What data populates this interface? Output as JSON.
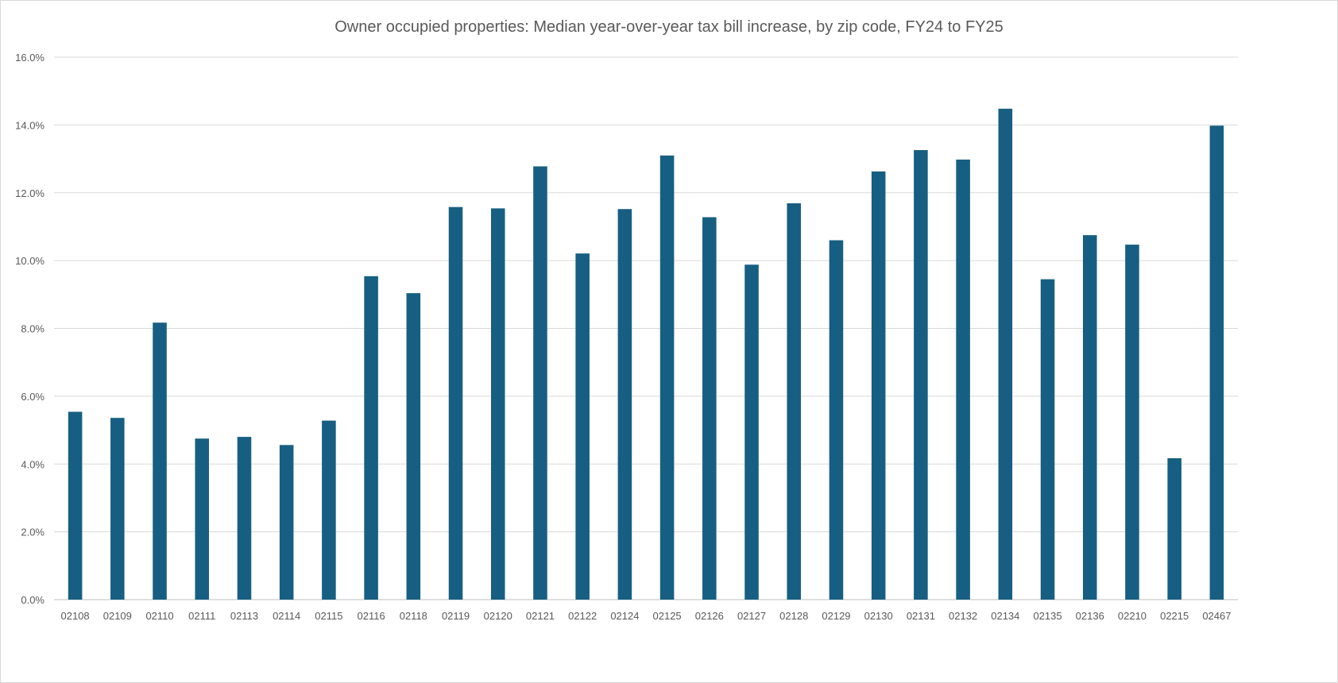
{
  "chart_data": {
    "type": "bar",
    "title": "Owner occupied properties: Median  year-over-year tax bill increase, by zip code, FY24 to FY25",
    "xlabel": "",
    "ylabel": "",
    "ylim": [
      0,
      16
    ],
    "yticks": [
      "0.0%",
      "2.0%",
      "4.0%",
      "6.0%",
      "8.0%",
      "10.0%",
      "12.0%",
      "14.0%",
      "16.0%"
    ],
    "grid": true,
    "legend": "none",
    "bar_color": "#175F82",
    "categories": [
      "02108",
      "02109",
      "02110",
      "02111",
      "02113",
      "02114",
      "02115",
      "02116",
      "02118",
      "02119",
      "02120",
      "02121",
      "02122",
      "02124",
      "02125",
      "02126",
      "02127",
      "02128",
      "02129",
      "02130",
      "02131",
      "02132",
      "02134",
      "02135",
      "02136",
      "02210",
      "02215",
      "02467"
    ],
    "values": [
      5.54,
      5.36,
      8.17,
      4.75,
      4.8,
      4.56,
      5.28,
      9.54,
      9.04,
      11.58,
      11.54,
      12.78,
      10.21,
      11.52,
      13.1,
      11.28,
      9.88,
      11.69,
      10.6,
      12.63,
      13.26,
      12.98,
      14.48,
      9.45,
      10.75,
      10.47,
      4.17,
      13.98
    ]
  }
}
